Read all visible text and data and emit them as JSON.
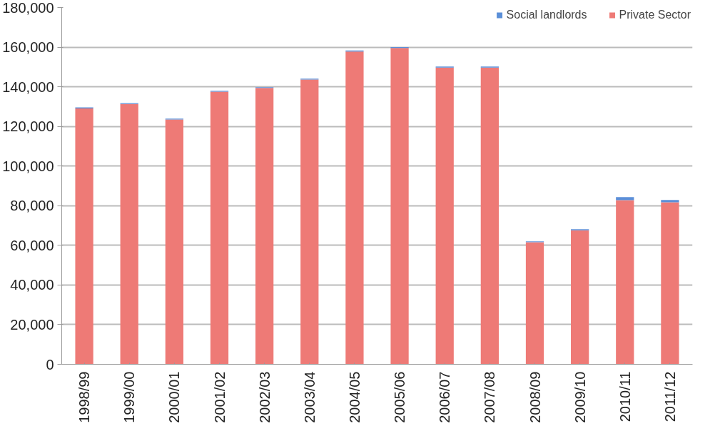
{
  "chart_data": {
    "type": "bar",
    "stacked": true,
    "categories": [
      "1998/99",
      "1999/00",
      "2000/01",
      "2001/02",
      "2002/03",
      "2003/04",
      "2004/05",
      "2005/06",
      "2006/07",
      "2007/08",
      "2008/09",
      "2009/10",
      "2010/11",
      "2011/12"
    ],
    "series": [
      {
        "name": "Private Sector",
        "color": "#ee7a76",
        "values": [
          129100,
          131300,
          123500,
          137500,
          139400,
          143600,
          157800,
          159600,
          149700,
          149700,
          61600,
          67600,
          82800,
          81700
        ]
      },
      {
        "name": "Social landlords",
        "color": "#5b8fd8",
        "values": [
          500,
          500,
          400,
          500,
          400,
          500,
          500,
          400,
          500,
          500,
          400,
          500,
          1500,
          1200
        ]
      }
    ],
    "ylim": [
      0,
      180000
    ],
    "yticks": [
      {
        "value": 0,
        "label": "0"
      },
      {
        "value": 20000,
        "label": "20,000"
      },
      {
        "value": 40000,
        "label": "40,000"
      },
      {
        "value": 60000,
        "label": "60,000"
      },
      {
        "value": 80000,
        "label": "80,000"
      },
      {
        "value": 100000,
        "label": "100,000"
      },
      {
        "value": 120000,
        "label": "120,000"
      },
      {
        "value": 140000,
        "label": "140,000"
      },
      {
        "value": 160000,
        "label": "160,000"
      },
      {
        "value": 180000,
        "label": "180,000"
      }
    ],
    "grid": "y",
    "legend": "top right"
  }
}
